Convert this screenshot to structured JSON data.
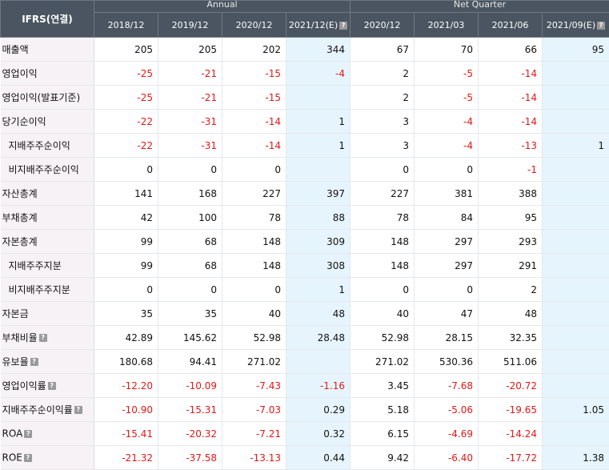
{
  "header": {
    "label": "IFRS(연결)",
    "groups": [
      "Annual",
      "Net Quarter"
    ],
    "periods": [
      "2018/12",
      "2019/12",
      "2020/12",
      "2021/12(E)",
      "2020/12",
      "2021/03",
      "2021/06",
      "2021/09(E)"
    ],
    "estimate_columns": [
      3,
      7
    ],
    "help_badge": "?"
  },
  "colors": {
    "header_bg": "#4a5561",
    "label_bg": "#f7f2f6",
    "estimate_bg": "#e6f5fd",
    "negative": "#e21818"
  },
  "rows": [
    {
      "label": "매출액",
      "indent": false,
      "help": false,
      "values": [
        "205",
        "205",
        "202",
        "344",
        "67",
        "70",
        "66",
        "95"
      ]
    },
    {
      "label": "영업이익",
      "indent": false,
      "help": false,
      "values": [
        "-25",
        "-21",
        "-15",
        "-4",
        "2",
        "-5",
        "-14",
        ""
      ]
    },
    {
      "label": "영업이익(발표기준)",
      "indent": false,
      "help": false,
      "values": [
        "-25",
        "-21",
        "-15",
        "",
        "2",
        "-5",
        "-14",
        ""
      ]
    },
    {
      "label": "당기순이익",
      "indent": false,
      "help": false,
      "values": [
        "-22",
        "-31",
        "-14",
        "1",
        "3",
        "-4",
        "-14",
        ""
      ]
    },
    {
      "label": "지배주주순이익",
      "indent": true,
      "help": false,
      "values": [
        "-22",
        "-31",
        "-14",
        "1",
        "3",
        "-4",
        "-13",
        "1"
      ]
    },
    {
      "label": "비지배주주순이익",
      "indent": true,
      "help": false,
      "values": [
        "0",
        "0",
        "0",
        "",
        "0",
        "0",
        "-1",
        ""
      ]
    },
    {
      "label": "자산총계",
      "indent": false,
      "help": false,
      "values": [
        "141",
        "168",
        "227",
        "397",
        "227",
        "381",
        "388",
        ""
      ]
    },
    {
      "label": "부채총계",
      "indent": false,
      "help": false,
      "values": [
        "42",
        "100",
        "78",
        "88",
        "78",
        "84",
        "95",
        ""
      ]
    },
    {
      "label": "자본총계",
      "indent": false,
      "help": false,
      "values": [
        "99",
        "68",
        "148",
        "309",
        "148",
        "297",
        "293",
        ""
      ]
    },
    {
      "label": "지배주주지분",
      "indent": true,
      "help": false,
      "values": [
        "99",
        "68",
        "148",
        "308",
        "148",
        "297",
        "291",
        ""
      ]
    },
    {
      "label": "비지배주주지분",
      "indent": true,
      "help": false,
      "values": [
        "0",
        "0",
        "0",
        "1",
        "0",
        "0",
        "2",
        ""
      ]
    },
    {
      "label": "자본금",
      "indent": false,
      "help": false,
      "values": [
        "35",
        "35",
        "40",
        "48",
        "40",
        "47",
        "48",
        ""
      ]
    },
    {
      "label": "부채비율",
      "indent": false,
      "help": true,
      "values": [
        "42.89",
        "145.62",
        "52.98",
        "28.48",
        "52.98",
        "28.15",
        "32.35",
        ""
      ]
    },
    {
      "label": "유보율",
      "indent": false,
      "help": true,
      "values": [
        "180.68",
        "94.41",
        "271.02",
        "",
        "271.02",
        "530.36",
        "511.06",
        ""
      ]
    },
    {
      "label": "영업이익률",
      "indent": false,
      "help": true,
      "values": [
        "-12.20",
        "-10.09",
        "-7.43",
        "-1.16",
        "3.45",
        "-7.68",
        "-20.72",
        ""
      ]
    },
    {
      "label": "지배주주순이익률",
      "indent": false,
      "help": true,
      "values": [
        "-10.90",
        "-15.31",
        "-7.03",
        "0.29",
        "5.18",
        "-5.06",
        "-19.65",
        "1.05"
      ]
    },
    {
      "label": "ROA",
      "indent": false,
      "help": true,
      "values": [
        "-15.41",
        "-20.32",
        "-7.21",
        "0.32",
        "6.15",
        "-4.69",
        "-14.24",
        ""
      ]
    },
    {
      "label": "ROE",
      "indent": false,
      "help": true,
      "values": [
        "-21.32",
        "-37.58",
        "-13.13",
        "0.44",
        "9.42",
        "-6.40",
        "-17.72",
        "1.38"
      ]
    }
  ]
}
